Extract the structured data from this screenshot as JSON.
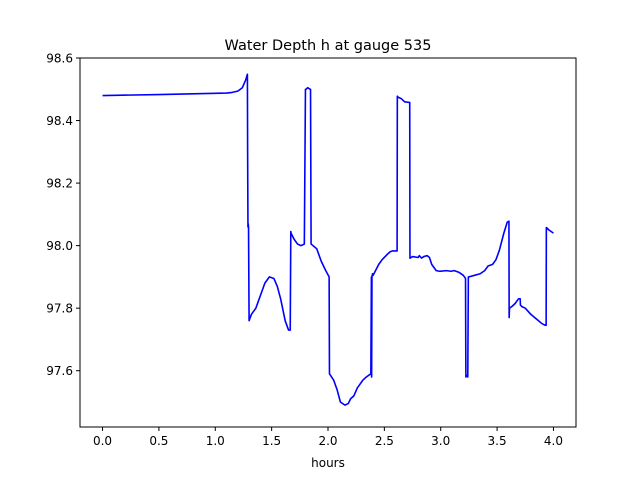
{
  "chart_data": {
    "type": "line",
    "title": "Water Depth h at gauge 535",
    "xlabel": "hours",
    "ylabel": "",
    "xlim": [
      -0.2,
      4.2
    ],
    "ylim": [
      97.42,
      98.6
    ],
    "xticks": [
      0.0,
      0.5,
      1.0,
      1.5,
      2.0,
      2.5,
      3.0,
      3.5,
      4.0
    ],
    "xtick_labels": [
      "0.0",
      "0.5",
      "1.0",
      "1.5",
      "2.0",
      "2.5",
      "3.0",
      "3.5",
      "4.0"
    ],
    "yticks": [
      97.6,
      97.8,
      98.0,
      98.2,
      98.4,
      98.6
    ],
    "ytick_labels": [
      "97.6",
      "97.8",
      "98.0",
      "98.2",
      "98.4",
      "98.6"
    ],
    "grid": false,
    "series": [
      {
        "color": "#0000ff",
        "x": [
          0.0,
          0.5,
          1.0,
          1.1,
          1.15,
          1.2,
          1.24,
          1.27,
          1.285,
          1.287,
          1.29,
          1.292,
          1.295,
          1.3,
          1.32,
          1.36,
          1.4,
          1.44,
          1.48,
          1.52,
          1.55,
          1.58,
          1.62,
          1.65,
          1.665,
          1.67,
          1.672,
          1.7,
          1.73,
          1.76,
          1.79,
          1.8,
          1.805,
          1.82,
          1.84,
          1.845,
          1.85,
          1.9,
          1.94,
          1.98,
          2.01,
          2.013,
          2.05,
          2.08,
          2.11,
          2.15,
          2.18,
          2.2,
          2.23,
          2.26,
          2.28,
          2.31,
          2.34,
          2.38,
          2.385,
          2.387,
          2.39,
          2.395,
          2.4,
          2.45,
          2.48,
          2.52,
          2.55,
          2.57,
          2.59,
          2.613,
          2.615,
          2.62,
          2.65,
          2.68,
          2.72,
          2.725,
          2.727,
          2.75,
          2.8,
          2.81,
          2.83,
          2.85,
          2.88,
          2.9,
          2.92,
          2.96,
          2.99,
          3.05,
          3.09,
          3.12,
          3.16,
          3.2,
          3.22,
          3.223,
          3.23,
          3.24,
          3.245,
          3.25,
          3.3,
          3.35,
          3.39,
          3.42,
          3.46,
          3.49,
          3.52,
          3.56,
          3.59,
          3.605,
          3.607,
          3.61,
          3.63,
          3.66,
          3.69,
          3.705,
          3.707,
          3.72,
          3.75,
          3.8,
          3.85,
          3.9,
          3.93,
          3.935,
          3.937,
          3.96,
          4.0
        ],
        "y": [
          98.48,
          98.483,
          98.487,
          98.488,
          98.49,
          98.494,
          98.505,
          98.53,
          98.548,
          98.3,
          98.06,
          98.07,
          98.06,
          97.76,
          97.78,
          97.8,
          97.84,
          97.88,
          97.9,
          97.895,
          97.87,
          97.83,
          97.76,
          97.73,
          97.73,
          98.045,
          98.04,
          98.02,
          98.005,
          98.0,
          98.005,
          98.5,
          98.5,
          98.505,
          98.5,
          98.5,
          98.005,
          97.99,
          97.95,
          97.92,
          97.9,
          97.59,
          97.57,
          97.54,
          97.5,
          97.49,
          97.495,
          97.51,
          97.52,
          97.545,
          97.555,
          97.57,
          97.58,
          97.59,
          97.9,
          97.58,
          97.9,
          97.91,
          97.905,
          97.94,
          97.955,
          97.97,
          97.98,
          97.983,
          97.983,
          97.983,
          98.478,
          98.475,
          98.47,
          98.46,
          98.458,
          98.458,
          97.96,
          97.965,
          97.962,
          97.968,
          97.96,
          97.965,
          97.968,
          97.962,
          97.94,
          97.92,
          97.918,
          97.92,
          97.918,
          97.92,
          97.915,
          97.905,
          97.895,
          97.58,
          97.585,
          97.58,
          97.9,
          97.9,
          97.905,
          97.91,
          97.92,
          97.935,
          97.94,
          97.955,
          97.985,
          98.04,
          98.075,
          98.078,
          97.77,
          97.8,
          97.805,
          97.815,
          97.83,
          97.83,
          97.81,
          97.805,
          97.8,
          97.78,
          97.765,
          97.75,
          97.745,
          97.745,
          98.058,
          98.05,
          98.04
        ]
      }
    ]
  }
}
